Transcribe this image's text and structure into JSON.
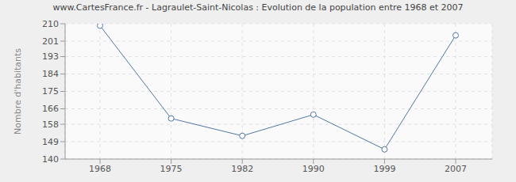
{
  "chart_data": {
    "type": "line",
    "title": "www.CartesFrance.fr - Lagraulet-Saint-Nicolas : Evolution de la population entre 1968 et 2007",
    "y_label": "Nombre d'habitants",
    "categories": [
      "1968",
      "1975",
      "1982",
      "1990",
      "1999",
      "2007"
    ],
    "values": [
      209,
      161,
      152,
      163,
      145,
      204
    ],
    "color": "#4f77a6",
    "ylim": [
      140,
      210
    ],
    "yticks": [
      140,
      149,
      158,
      166,
      175,
      184,
      193,
      201,
      210
    ],
    "grid": true,
    "marker": "circle"
  }
}
